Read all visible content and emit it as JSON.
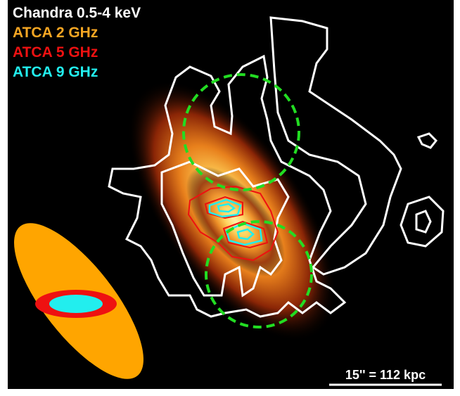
{
  "legend": [
    "Chandra 0.5-4 keV",
    "ATCA 2 GHz",
    "ATCA 5 GHz",
    "ATCA 9 GHz"
  ],
  "scale_bar": "15'' = 112 kpc"
}
